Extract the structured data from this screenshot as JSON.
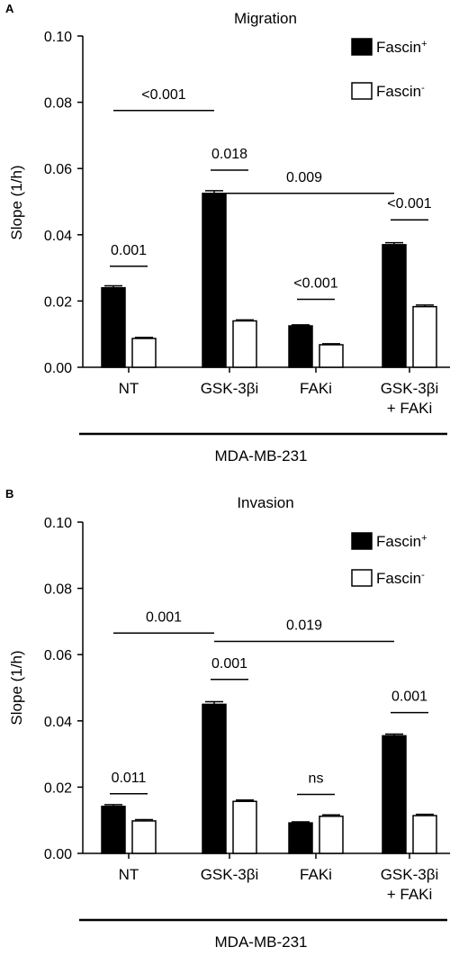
{
  "figure": {
    "panels": [
      {
        "letter": "A",
        "title": "Migration",
        "ylabel": "Slope (1/h)",
        "group_label": "MDA-MB-231",
        "legend": [
          {
            "label": "Fascin",
            "sup": "+",
            "fill": "#000000"
          },
          {
            "label": "Fascin",
            "sup": "-",
            "fill": "#ffffff"
          }
        ]
      },
      {
        "letter": "B",
        "title": "Invasion",
        "ylabel": "Slope (1/h)",
        "group_label": "MDA-MB-231",
        "legend": [
          {
            "label": "Fascin",
            "sup": "+",
            "fill": "#000000"
          },
          {
            "label": "Fascin",
            "sup": "-",
            "fill": "#ffffff"
          }
        ]
      }
    ]
  },
  "chart_data": [
    {
      "type": "bar",
      "title": "Migration",
      "ylabel": "Slope (1/h)",
      "xlabel": "MDA-MB-231",
      "ylim": [
        0,
        0.1
      ],
      "yticks": [
        "0.00",
        "0.02",
        "0.04",
        "0.06",
        "0.08",
        "0.10"
      ],
      "categories": [
        [
          "NT"
        ],
        [
          "GSK-3βi"
        ],
        [
          "FAKi"
        ],
        [
          "GSK-3βi",
          "+ FAKi"
        ]
      ],
      "series": [
        {
          "name": "Fascin+",
          "color": "#000000",
          "values": [
            0.024,
            0.0525,
            0.0125,
            0.037
          ],
          "errors": [
            0.0006,
            0.0008,
            0.0003,
            0.0006
          ]
        },
        {
          "name": "Fascin-",
          "color": "#ffffff",
          "values": [
            0.0087,
            0.014,
            0.0068,
            0.0183
          ],
          "errors": [
            0.0003,
            0.0003,
            0.0003,
            0.0005
          ]
        }
      ],
      "annotations": [
        {
          "text": "0.001",
          "kind": "within",
          "group": 0,
          "y": 0.0305
        },
        {
          "text": "<0.001",
          "kind": "between",
          "from": 0,
          "to": 1,
          "series": 0,
          "y": 0.0775
        },
        {
          "text": "0.018",
          "kind": "within",
          "group": 1,
          "y": 0.0595
        },
        {
          "text": "0.009",
          "kind": "between",
          "from": 1,
          "to": 3,
          "series": 0,
          "y": 0.0525
        },
        {
          "text": "<0.001",
          "kind": "within",
          "group": 2,
          "y": 0.0205
        },
        {
          "text": "<0.001",
          "kind": "within",
          "group": 3,
          "y": 0.0445
        }
      ]
    },
    {
      "type": "bar",
      "title": "Invasion",
      "ylabel": "Slope (1/h)",
      "xlabel": "MDA-MB-231",
      "ylim": [
        0,
        0.1
      ],
      "yticks": [
        "0.00",
        "0.02",
        "0.04",
        "0.06",
        "0.08",
        "0.10"
      ],
      "categories": [
        [
          "NT"
        ],
        [
          "GSK-3βi"
        ],
        [
          "FAKi"
        ],
        [
          "GSK-3βi",
          "+ FAKi"
        ]
      ],
      "series": [
        {
          "name": "Fascin+",
          "color": "#000000",
          "values": [
            0.0142,
            0.045,
            0.0092,
            0.0355
          ],
          "errors": [
            0.0005,
            0.0008,
            0.0003,
            0.0005
          ]
        },
        {
          "name": "Fascin-",
          "color": "#ffffff",
          "values": [
            0.0098,
            0.0157,
            0.0112,
            0.0114
          ],
          "errors": [
            0.0004,
            0.0004,
            0.0004,
            0.0004
          ]
        }
      ],
      "annotations": [
        {
          "text": "0.011",
          "kind": "within",
          "group": 0,
          "y": 0.018
        },
        {
          "text": "0.001",
          "kind": "between",
          "from": 0,
          "to": 1,
          "series": 0,
          "y": 0.0665
        },
        {
          "text": "0.001",
          "kind": "within",
          "group": 1,
          "y": 0.0525
        },
        {
          "text": "0.019",
          "kind": "between",
          "from": 1,
          "to": 3,
          "series": 0,
          "y": 0.064
        },
        {
          "text": "ns",
          "kind": "within",
          "group": 2,
          "y": 0.0178
        },
        {
          "text": "0.001",
          "kind": "within",
          "group": 3,
          "y": 0.0425
        }
      ]
    }
  ]
}
